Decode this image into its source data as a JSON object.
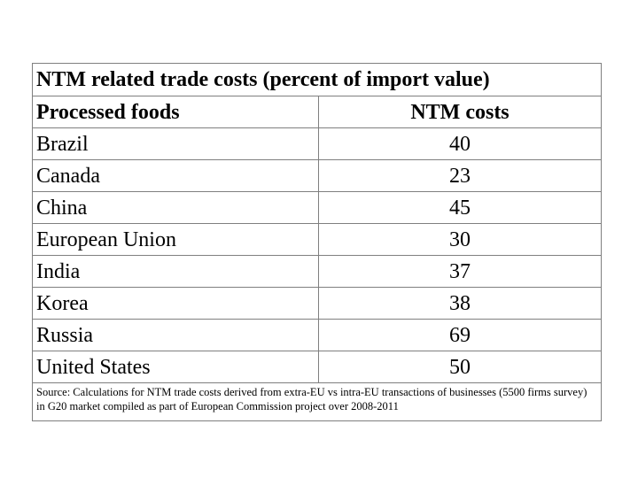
{
  "table": {
    "title": "NTM related trade costs (percent of import value)",
    "header": {
      "left": "Processed foods",
      "right": "NTM costs"
    },
    "rows": [
      {
        "country": "Brazil",
        "cost": "40"
      },
      {
        "country": "Canada",
        "cost": "23"
      },
      {
        "country": "China",
        "cost": "45"
      },
      {
        "country": "European Union",
        "cost": "30"
      },
      {
        "country": "India",
        "cost": "37"
      },
      {
        "country": "Korea",
        "cost": "38"
      },
      {
        "country": "Russia",
        "cost": "69"
      },
      {
        "country": "United States",
        "cost": "50"
      }
    ],
    "source": "Source: Calculations for NTM trade costs derived from extra-EU vs intra-EU transactions of businesses (5500 firms survey) in G20 market compiled as part of European Commission project over 2008-2011"
  }
}
